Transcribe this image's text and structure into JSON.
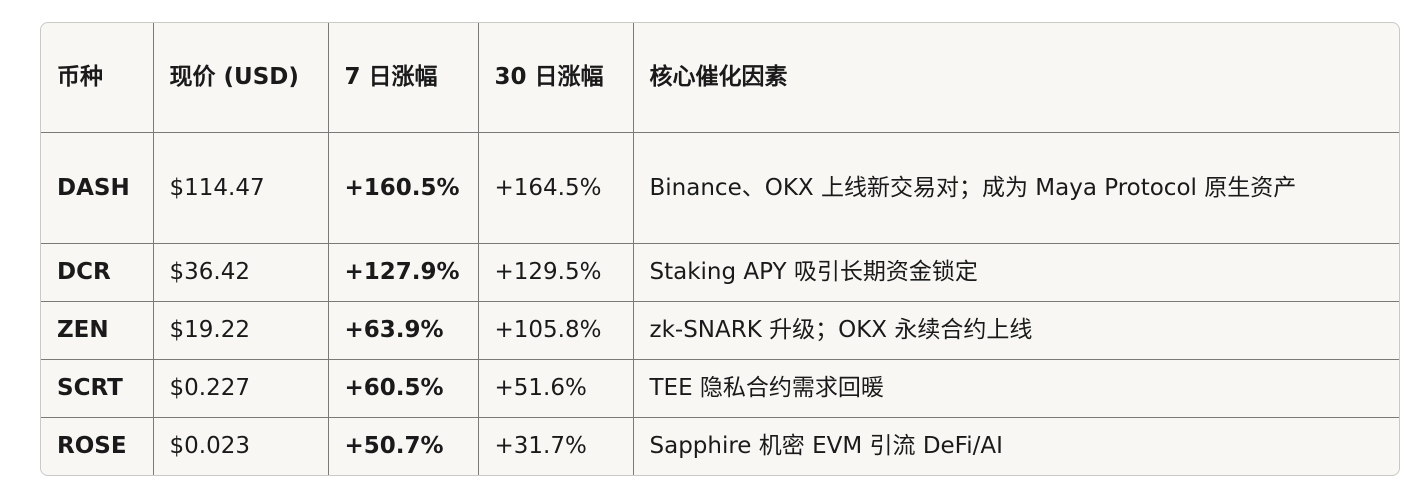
{
  "table": {
    "headers": [
      "币种",
      "现价 (USD)",
      "7 日涨幅",
      "30 日涨幅",
      "核心催化因素"
    ],
    "rows": [
      [
        "DASH",
        "$114.47",
        "+160.5%",
        "+164.5%",
        "Binance、OKX 上线新交易对；成为 Maya Protocol 原生资产"
      ],
      [
        "DCR",
        "$36.42",
        "+127.9%",
        "+129.5%",
        "Staking APY 吸引长期资金锁定"
      ],
      [
        "ZEN",
        "$19.22",
        "+63.9%",
        "+105.8%",
        "zk-SNARK 升级；OKX 永续合约上线"
      ],
      [
        "SCRT",
        "$0.227",
        "+60.5%",
        "+51.6%",
        "TEE 隐私合约需求回暖"
      ],
      [
        "ROSE",
        "$0.023",
        "+50.7%",
        "+31.7%",
        "Sapphire 机密 EVM 引流 DeFi/AI"
      ]
    ]
  }
}
